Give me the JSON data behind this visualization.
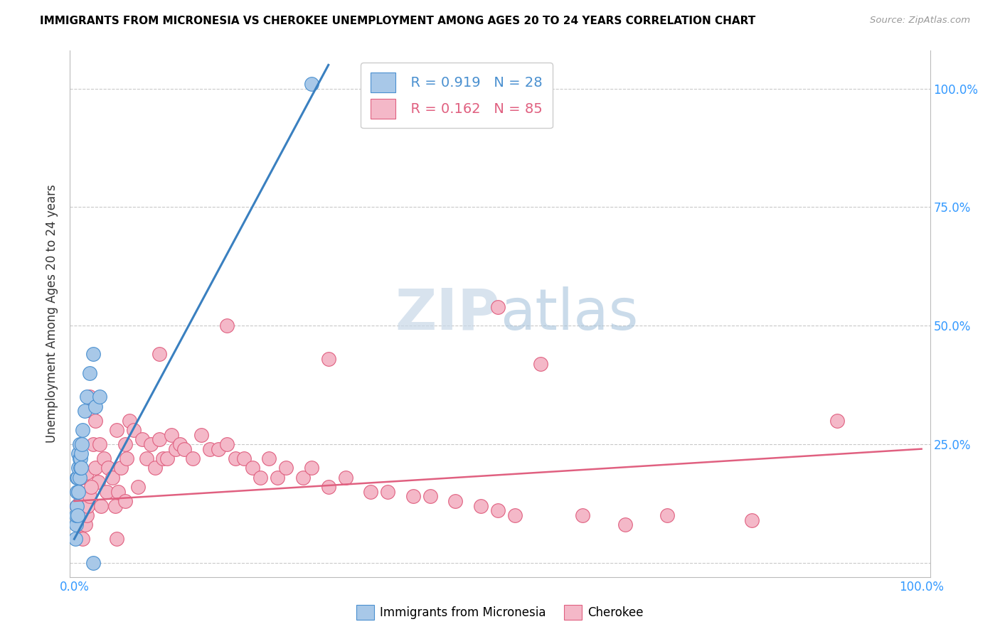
{
  "title": "IMMIGRANTS FROM MICRONESIA VS CHEROKEE UNEMPLOYMENT AMONG AGES 20 TO 24 YEARS CORRELATION CHART",
  "source": "Source: ZipAtlas.com",
  "ylabel": "Unemployment Among Ages 20 to 24 years",
  "legend_blue_R": "R = 0.919",
  "legend_blue_N": "N = 28",
  "legend_pink_R": "R = 0.162",
  "legend_pink_N": "N = 85",
  "blue_fill_color": "#A8C8E8",
  "blue_edge_color": "#4A90D0",
  "pink_fill_color": "#F4B8C8",
  "pink_edge_color": "#E06080",
  "blue_line_color": "#3A80C0",
  "pink_line_color": "#E06080",
  "watermark_zip": "ZIP",
  "watermark_atlas": "atlas",
  "blue_scatter_x": [
    0.001,
    0.002,
    0.002,
    0.003,
    0.003,
    0.003,
    0.004,
    0.004,
    0.005,
    0.005,
    0.005,
    0.006,
    0.006,
    0.006,
    0.007,
    0.007,
    0.008,
    0.008,
    0.009,
    0.01,
    0.012,
    0.015,
    0.018,
    0.022,
    0.025,
    0.03,
    0.022,
    0.28
  ],
  "blue_scatter_y": [
    0.05,
    0.08,
    0.1,
    0.12,
    0.15,
    0.18,
    0.1,
    0.18,
    0.15,
    0.2,
    0.23,
    0.18,
    0.22,
    0.25,
    0.2,
    0.22,
    0.2,
    0.23,
    0.25,
    0.28,
    0.32,
    0.35,
    0.4,
    0.44,
    0.33,
    0.35,
    0.0,
    1.01
  ],
  "pink_scatter_x": [
    0.003,
    0.004,
    0.005,
    0.005,
    0.006,
    0.007,
    0.008,
    0.008,
    0.009,
    0.01,
    0.012,
    0.013,
    0.015,
    0.015,
    0.016,
    0.018,
    0.018,
    0.02,
    0.022,
    0.025,
    0.025,
    0.028,
    0.03,
    0.032,
    0.035,
    0.038,
    0.04,
    0.045,
    0.048,
    0.05,
    0.052,
    0.055,
    0.06,
    0.062,
    0.065,
    0.07,
    0.075,
    0.08,
    0.085,
    0.09,
    0.095,
    0.1,
    0.105,
    0.11,
    0.115,
    0.12,
    0.125,
    0.13,
    0.14,
    0.15,
    0.16,
    0.17,
    0.18,
    0.19,
    0.2,
    0.21,
    0.22,
    0.23,
    0.24,
    0.25,
    0.27,
    0.28,
    0.3,
    0.32,
    0.35,
    0.37,
    0.4,
    0.42,
    0.45,
    0.48,
    0.5,
    0.52,
    0.55,
    0.6,
    0.65,
    0.7,
    0.8,
    0.9,
    0.5,
    0.3,
    0.18,
    0.1,
    0.05,
    0.02,
    0.06
  ],
  "pink_scatter_y": [
    0.12,
    0.08,
    0.1,
    0.15,
    0.12,
    0.13,
    0.18,
    0.08,
    0.1,
    0.05,
    0.14,
    0.08,
    0.19,
    0.1,
    0.12,
    0.35,
    0.14,
    0.32,
    0.25,
    0.2,
    0.3,
    0.17,
    0.25,
    0.12,
    0.22,
    0.15,
    0.2,
    0.18,
    0.12,
    0.28,
    0.15,
    0.2,
    0.25,
    0.22,
    0.3,
    0.28,
    0.16,
    0.26,
    0.22,
    0.25,
    0.2,
    0.26,
    0.22,
    0.22,
    0.27,
    0.24,
    0.25,
    0.24,
    0.22,
    0.27,
    0.24,
    0.24,
    0.25,
    0.22,
    0.22,
    0.2,
    0.18,
    0.22,
    0.18,
    0.2,
    0.18,
    0.2,
    0.16,
    0.18,
    0.15,
    0.15,
    0.14,
    0.14,
    0.13,
    0.12,
    0.11,
    0.1,
    0.42,
    0.1,
    0.08,
    0.1,
    0.09,
    0.3,
    0.54,
    0.43,
    0.5,
    0.44,
    0.05,
    0.16,
    0.13
  ],
  "blue_line_x0": 0.0,
  "blue_line_x1": 0.3,
  "blue_line_y0": 0.05,
  "blue_line_y1": 1.05,
  "pink_line_x0": 0.0,
  "pink_line_x1": 1.0,
  "pink_line_y0": 0.13,
  "pink_line_y1": 0.24,
  "xlim_min": -0.005,
  "xlim_max": 1.01,
  "ylim_min": -0.03,
  "ylim_max": 1.08
}
